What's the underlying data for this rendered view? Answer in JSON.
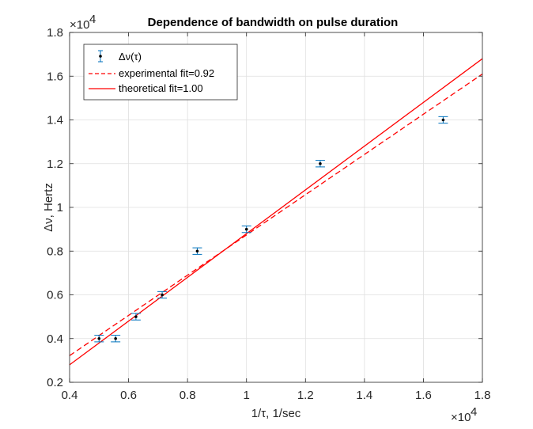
{
  "chart_data": {
    "type": "scatter",
    "title": "Dependence of bandwidth on pulse duration",
    "xlabel": "1/τ, 1/sec",
    "ylabel": "Δν, Hertz",
    "x_exponent_label": "×10",
    "x_exponent_power": "4",
    "y_exponent_label": "×10",
    "y_exponent_power": "4",
    "xlim": [
      4000,
      18000
    ],
    "ylim": [
      2000,
      18000
    ],
    "x_ticks": [
      4000,
      6000,
      8000,
      10000,
      12000,
      14000,
      16000,
      18000
    ],
    "x_tick_labels": [
      "0.4",
      "0.6",
      "0.8",
      "1",
      "1.2",
      "1.4",
      "1.6",
      "1.8"
    ],
    "y_ticks": [
      2000,
      4000,
      6000,
      8000,
      10000,
      12000,
      14000,
      16000,
      18000
    ],
    "y_tick_labels": [
      "0.2",
      "0.4",
      "0.6",
      "0.8",
      "1",
      "1.2",
      "1.4",
      "1.6",
      "1.8"
    ],
    "grid": true,
    "legend_position": "top-left",
    "series": [
      {
        "name": "Δν(τ)",
        "kind": "errorbar",
        "color": "#0072BD",
        "marker_color": "#000000",
        "x": [
          5000,
          5560,
          6250,
          7140,
          8330,
          10000,
          12500,
          16670
        ],
        "y": [
          4000,
          4000,
          5000,
          6000,
          8000,
          9000,
          12000,
          14000
        ],
        "error": [
          150,
          150,
          150,
          150,
          150,
          150,
          150,
          150
        ]
      },
      {
        "name": "experimental fit=0.92",
        "kind": "line",
        "style": "dashed",
        "color": "#FF0000",
        "x": [
          4000,
          18000
        ],
        "y": [
          3220,
          16100
        ]
      },
      {
        "name": "theoretical fit=1.00",
        "kind": "line",
        "style": "solid",
        "color": "#FF0000",
        "x": [
          4000,
          18000
        ],
        "y": [
          2800,
          16800
        ]
      }
    ]
  }
}
